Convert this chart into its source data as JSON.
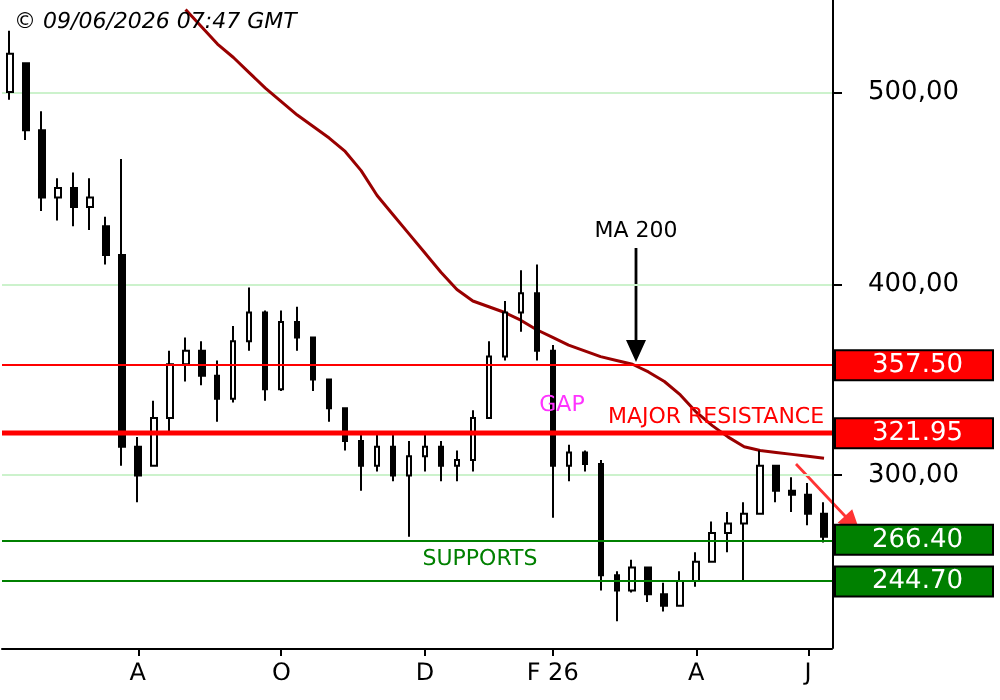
{
  "chart_data": {
    "type": "candlestick",
    "title": "© 09/06/2026 07:47 GMT",
    "color": "#000000",
    "categories": [
      null,
      null,
      null,
      null,
      null,
      null,
      null,
      null,
      "A",
      null,
      null,
      null,
      null,
      null,
      null,
      null,
      null,
      "O",
      null,
      null,
      null,
      null,
      null,
      null,
      null,
      null,
      "D",
      null,
      null,
      null,
      null,
      null,
      null,
      null,
      "F 26",
      null,
      null,
      null,
      null,
      null,
      null,
      null,
      null,
      "A",
      null,
      null,
      null,
      null,
      null,
      null,
      "J",
      null
    ],
    "ohlc": [
      [
        500,
        532,
        496,
        520
      ],
      [
        515,
        515,
        475,
        480
      ],
      [
        480,
        490,
        438,
        445
      ],
      [
        445,
        455,
        433,
        450
      ],
      [
        450,
        458,
        430,
        440
      ],
      [
        440,
        455,
        428,
        445
      ],
      [
        430,
        435,
        410,
        415
      ],
      [
        415,
        465,
        305,
        315
      ],
      [
        315,
        320,
        286,
        300
      ],
      [
        305,
        339,
        305,
        330
      ],
      [
        330,
        365,
        323,
        358
      ],
      [
        358,
        372,
        349,
        365
      ],
      [
        365,
        370,
        347,
        352
      ],
      [
        352,
        360,
        328,
        340
      ],
      [
        340,
        378,
        338,
        370
      ],
      [
        370,
        398,
        365,
        385
      ],
      [
        385,
        386,
        339,
        345
      ],
      [
        345,
        386,
        344,
        380
      ],
      [
        380,
        388,
        365,
        372
      ],
      [
        372,
        372,
        344,
        350
      ],
      [
        350,
        350,
        328,
        335
      ],
      [
        335,
        335,
        313,
        318
      ],
      [
        318,
        323,
        292,
        305
      ],
      [
        305,
        323,
        302,
        315
      ],
      [
        315,
        323,
        297,
        300
      ],
      [
        300,
        318,
        268,
        310
      ],
      [
        310,
        323,
        302,
        315
      ],
      [
        315,
        318,
        297,
        305
      ],
      [
        305,
        313,
        297,
        308
      ],
      [
        308,
        334,
        302,
        330
      ],
      [
        330,
        370,
        330,
        362
      ],
      [
        362,
        391,
        360,
        385
      ],
      [
        385,
        407,
        375,
        395
      ],
      [
        395,
        410,
        360,
        365
      ],
      [
        365,
        368,
        278,
        305
      ],
      [
        305,
        316,
        297,
        312
      ],
      [
        312,
        313,
        302,
        306
      ],
      [
        306,
        308,
        240,
        248
      ],
      [
        248,
        250,
        224,
        240
      ],
      [
        240,
        256,
        239,
        252
      ],
      [
        252,
        252,
        234,
        238
      ],
      [
        238,
        244,
        229,
        232
      ],
      [
        232,
        250,
        232,
        245
      ],
      [
        245,
        260,
        242,
        255
      ],
      [
        255,
        276,
        255,
        270
      ],
      [
        270,
        281,
        260,
        275
      ],
      [
        275,
        286,
        245,
        280
      ],
      [
        280,
        313,
        280,
        305
      ],
      [
        305,
        305,
        286,
        292
      ],
      [
        292,
        299,
        281,
        290
      ],
      [
        290,
        296,
        274,
        280
      ],
      [
        280,
        286,
        265,
        268
      ]
    ],
    "series": [
      {
        "type": "line",
        "color": "#990000",
        "values": [
          null,
          null,
          null,
          null,
          null,
          null,
          null,
          null,
          null,
          null,
          null,
          543,
          534,
          525,
          518,
          510,
          502,
          495,
          488,
          482,
          476,
          469,
          459,
          446,
          436,
          426,
          416,
          406,
          397,
          391,
          388,
          385,
          381,
          376,
          372,
          368,
          365,
          362,
          360,
          358,
          354,
          349,
          342,
          333,
          326,
          320,
          315,
          313,
          312,
          311,
          310,
          309
        ]
      }
    ],
    "ylim": [
      210,
      548
    ],
    "yticks": [
      {
        "value": 300,
        "label": "300,00"
      },
      {
        "value": 400,
        "label": "400,00"
      },
      {
        "value": 500,
        "label": "500,00"
      }
    ],
    "grid": "y",
    "ref_lines": [
      {
        "axis": "y",
        "value": 357.5,
        "label": "357.50",
        "color": "#ff0000"
      },
      {
        "axis": "y",
        "value": 321.95,
        "label": "321.95",
        "color": "#ff0000"
      },
      {
        "axis": "y",
        "value": 266.4,
        "label": "266.40",
        "color": "#008000"
      },
      {
        "axis": "y",
        "value": 244.7,
        "label": "244.70",
        "color": "#008000"
      }
    ],
    "annotations": [
      "MA 200",
      "GAP",
      "MAJOR RESISTANCE",
      "SUPPORTS"
    ]
  }
}
